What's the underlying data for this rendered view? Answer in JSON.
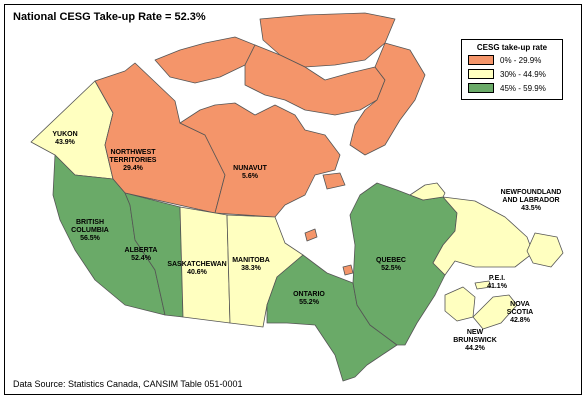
{
  "title": "National CESG Take-up Rate = 52.3%",
  "source": "Data Source: Statistics Canada, CANSIM Table 051-0001",
  "legend": {
    "title": "CESG take-up rate",
    "items": [
      {
        "label": "0% - 29.9%",
        "color": "#f4956a"
      },
      {
        "label": "30% - 44.9%",
        "color": "#ffffc0"
      },
      {
        "label": "45% - 59.9%",
        "color": "#6aaa68"
      }
    ]
  },
  "colors": {
    "orange": "#f4956a",
    "yellow": "#ffffc0",
    "green": "#6aaa68",
    "water": "#ffffff",
    "border": "#555555"
  },
  "regions": [
    {
      "name_lines": [
        "YUKON"
      ],
      "value": "43.9%",
      "value_pct": 43.9,
      "category": "yellow"
    },
    {
      "name_lines": [
        "NORTHWEST",
        "TERRITORIES"
      ],
      "value": "29.4%",
      "value_pct": 29.4,
      "category": "orange"
    },
    {
      "name_lines": [
        "NUNAVUT"
      ],
      "value": "5.6%",
      "value_pct": 5.6,
      "category": "orange"
    },
    {
      "name_lines": [
        "BRITISH",
        "COLUMBIA"
      ],
      "value": "56.5%",
      "value_pct": 56.5,
      "category": "green"
    },
    {
      "name_lines": [
        "ALBERTA"
      ],
      "value": "52.4%",
      "value_pct": 52.4,
      "category": "green"
    },
    {
      "name_lines": [
        "SASKATCHEWAN"
      ],
      "value": "40.6%",
      "value_pct": 40.6,
      "category": "yellow"
    },
    {
      "name_lines": [
        "MANITOBA"
      ],
      "value": "38.3%",
      "value_pct": 38.3,
      "category": "yellow"
    },
    {
      "name_lines": [
        "ONTARIO"
      ],
      "value": "55.2%",
      "value_pct": 55.2,
      "category": "green"
    },
    {
      "name_lines": [
        "QUEBEC"
      ],
      "value": "52.5%",
      "value_pct": 52.5,
      "category": "green"
    },
    {
      "name_lines": [
        "NEWFOUNDLAND",
        "AND LABRADOR"
      ],
      "value": "43.5%",
      "value_pct": 43.5,
      "category": "yellow"
    },
    {
      "name_lines": [
        "P.E.I."
      ],
      "value": "41.1%",
      "value_pct": 41.1,
      "category": "yellow"
    },
    {
      "name_lines": [
        "NOVA",
        "SCOTIA"
      ],
      "value": "42.8%",
      "value_pct": 42.8,
      "category": "yellow"
    },
    {
      "name_lines": [
        "NEW",
        "BRUNSWICK"
      ],
      "value": "44.2%",
      "value_pct": 44.2,
      "category": "yellow"
    }
  ]
}
